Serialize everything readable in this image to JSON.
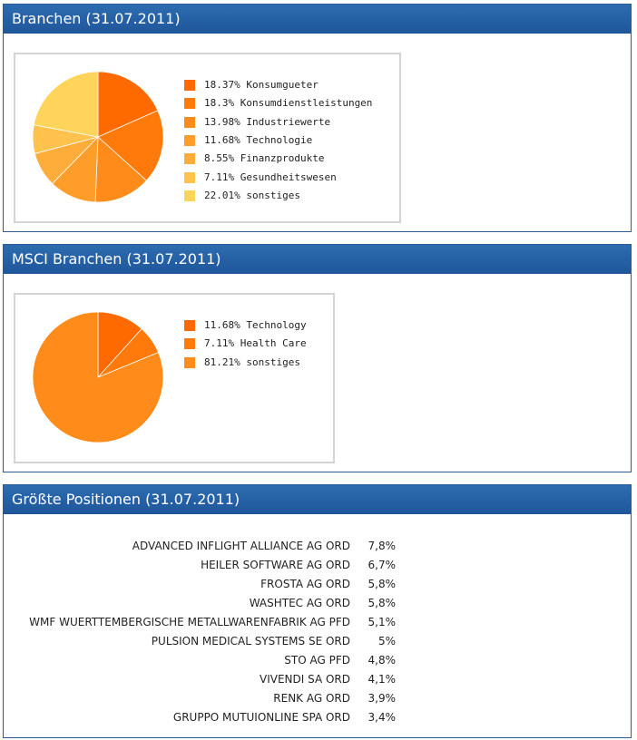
{
  "panels": [
    {
      "title": "Branchen (31.07.2011)",
      "chart_data": {
        "type": "pie",
        "categories": [
          "Konsumgueter",
          "Konsumdienstleistungen",
          "Industriewerte",
          "Technologie",
          "Finanzprodukte",
          "Gesundheitswesen",
          "sonstiges"
        ],
        "values": [
          18.37,
          18.3,
          13.98,
          11.68,
          8.55,
          7.11,
          22.01
        ],
        "labels": [
          "18.37% Konsumgueter",
          "18.3% Konsumdienstleistungen",
          "13.98% Industriewerte",
          "11.68% Technologie",
          "8.55% Finanzprodukte",
          "7.11% Gesundheitswesen",
          "22.01% sonstiges"
        ],
        "colors": [
          "#ff6a00",
          "#ff7a0a",
          "#ff8c1a",
          "#ff9d2a",
          "#ffad3a",
          "#ffc24d",
          "#ffd45a"
        ],
        "legend": "right"
      }
    },
    {
      "title": "MSCI Branchen (31.07.2011)",
      "chart_data": {
        "type": "pie",
        "categories": [
          "Technology",
          "Health Care",
          "sonstiges"
        ],
        "values": [
          11.68,
          7.11,
          81.21
        ],
        "labels": [
          "11.68% Technology",
          "7.11% Health Care",
          "81.21% sonstiges"
        ],
        "colors": [
          "#ff6a00",
          "#ff7a0a",
          "#ff8c1a"
        ],
        "legend": "right"
      }
    }
  ],
  "positions": {
    "title": "Größte Positionen (31.07.2011)",
    "rows": [
      {
        "name": "ADVANCED INFLIGHT ALLIANCE AG ORD",
        "value": "7,8%"
      },
      {
        "name": "HEILER SOFTWARE AG ORD",
        "value": "6,7%"
      },
      {
        "name": "FROSTA AG ORD",
        "value": "5,8%"
      },
      {
        "name": "WASHTEC AG ORD",
        "value": "5,8%"
      },
      {
        "name": "WMF WUERTTEMBERGISCHE METALLWARENFABRIK AG PFD",
        "value": "5,1%"
      },
      {
        "name": "PULSION MEDICAL SYSTEMS SE ORD",
        "value": "5%"
      },
      {
        "name": "STO AG PFD",
        "value": "4,8%"
      },
      {
        "name": "VIVENDI SA ORD",
        "value": "4,1%"
      },
      {
        "name": "RENK AG ORD",
        "value": "3,9%"
      },
      {
        "name": "GRUPPO MUTUIONLINE SPA ORD",
        "value": "3,4%"
      }
    ]
  }
}
